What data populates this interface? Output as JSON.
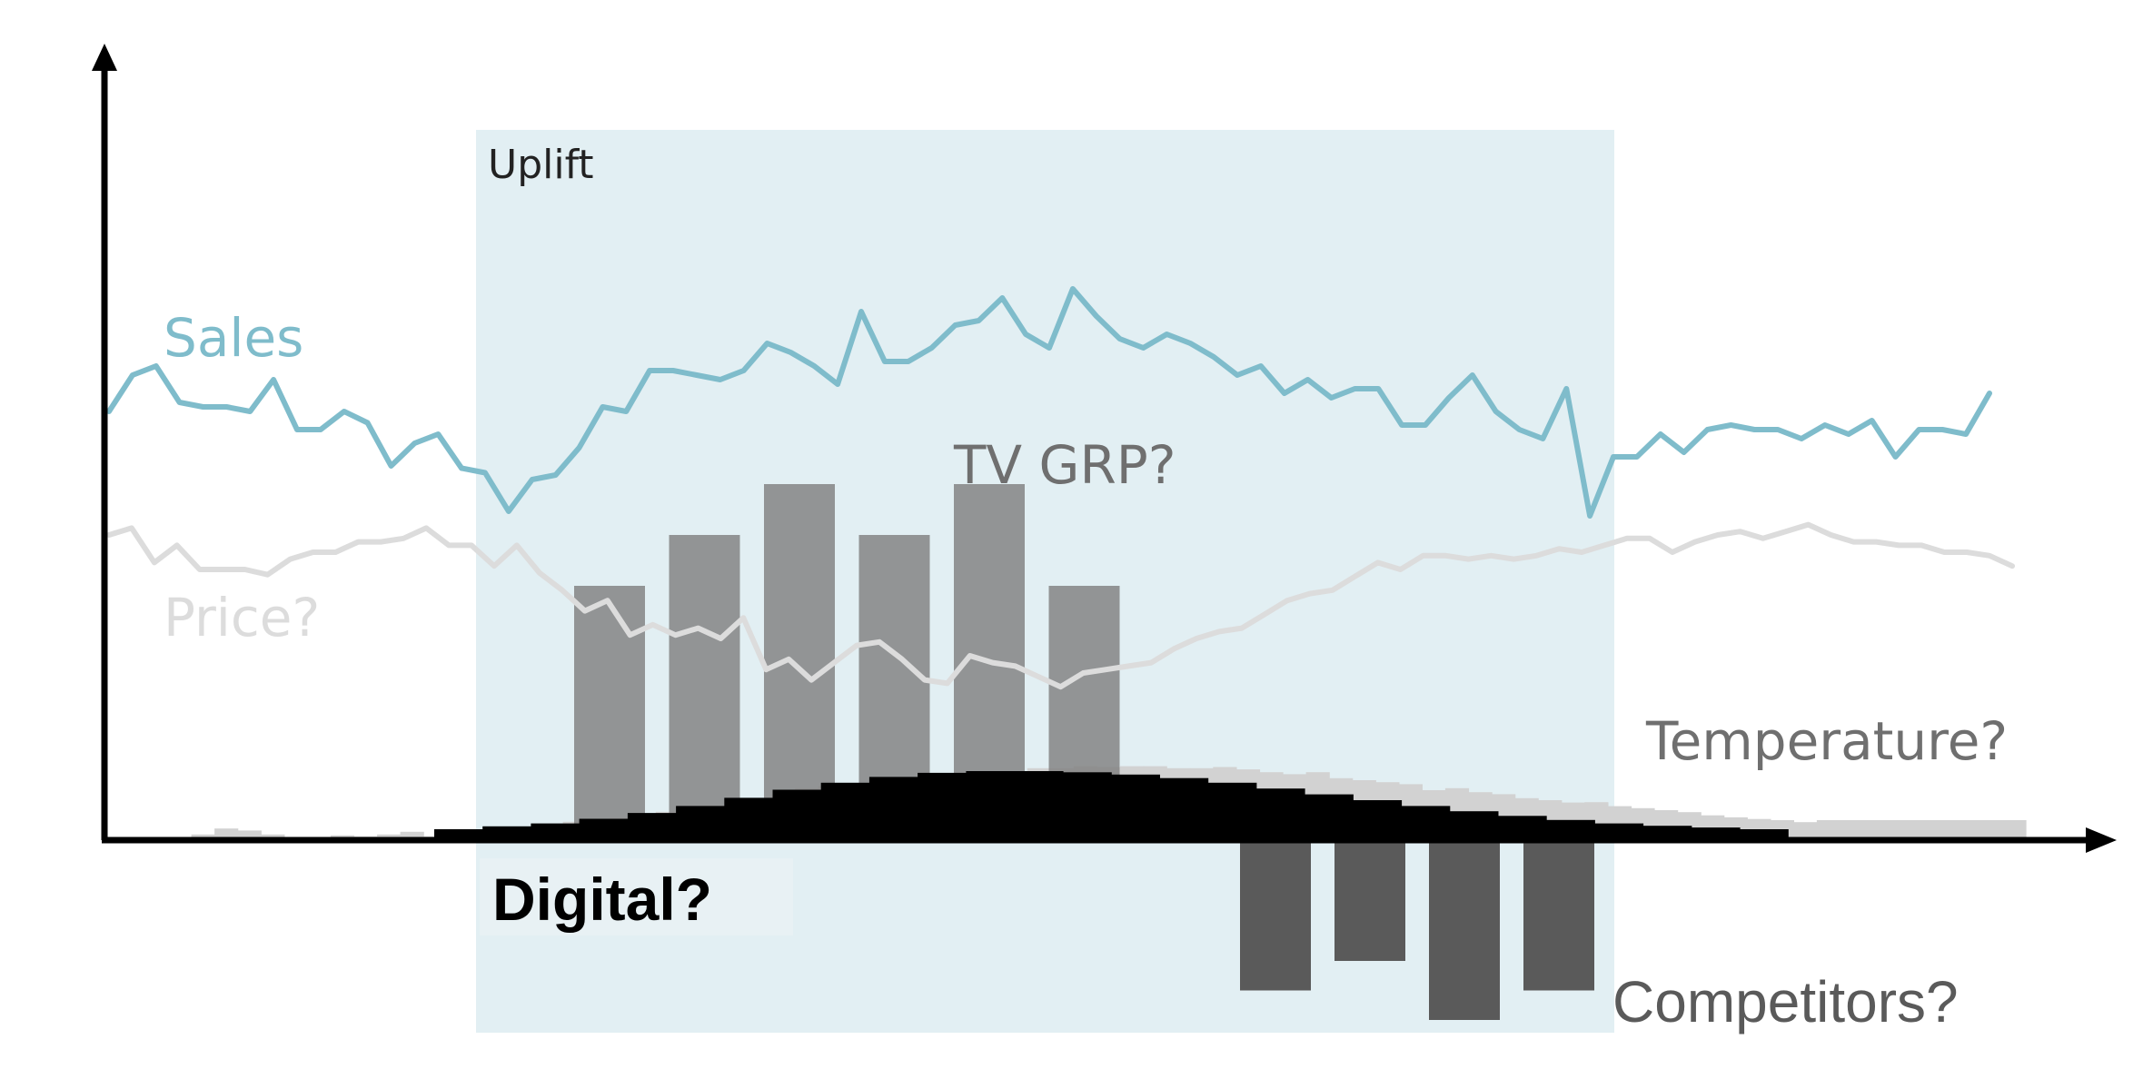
{
  "labels": {
    "uplift": "Uplift",
    "sales": "Sales",
    "price": "Price?",
    "tv_grp": "TV GRP?",
    "temperature": "Temperature?",
    "digital": "Digital?",
    "competitors": "Competitors?"
  },
  "colors": {
    "background": "#ffffff",
    "uplift_region": "#e2eff3",
    "axis": "#000000",
    "sales": "#7fbccb",
    "price": "#dcdcdc",
    "tv_grp": "#808080",
    "temperature": "#d2d2d2",
    "digital": "#000000",
    "competitors": "#5a5a5a",
    "label_dark": "#222222",
    "label_grey": "#6f6f6f"
  },
  "series": {
    "sales": [
      0.46,
      0.62,
      0.66,
      0.5,
      0.48,
      0.48,
      0.46,
      0.6,
      0.38,
      0.38,
      0.46,
      0.41,
      0.22,
      0.32,
      0.36,
      0.21,
      0.19,
      0.02,
      0.16,
      0.18,
      0.3,
      0.48,
      0.46,
      0.64,
      0.64,
      0.62,
      0.6,
      0.64,
      0.76,
      0.72,
      0.66,
      0.58,
      0.9,
      0.68,
      0.68,
      0.74,
      0.84,
      0.86,
      0.96,
      0.8,
      0.74,
      1.0,
      0.88,
      0.78,
      0.74,
      0.8,
      0.76,
      0.7,
      0.62,
      0.66,
      0.54,
      0.6,
      0.52,
      0.56,
      0.56,
      0.4,
      0.4,
      0.52,
      0.62,
      0.46,
      0.38,
      0.34,
      0.56,
      0.0,
      0.26,
      0.26,
      0.36,
      0.28,
      0.38,
      0.4,
      0.38,
      0.38,
      0.34,
      0.4,
      0.36,
      0.42,
      0.26,
      0.38,
      0.38,
      0.36,
      0.54
    ],
    "price": [
      0.9,
      0.94,
      0.74,
      0.84,
      0.7,
      0.7,
      0.7,
      0.67,
      0.76,
      0.8,
      0.8,
      0.86,
      0.86,
      0.88,
      0.94,
      0.84,
      0.84,
      0.72,
      0.84,
      0.68,
      0.58,
      0.46,
      0.52,
      0.32,
      0.38,
      0.32,
      0.36,
      0.3,
      0.42,
      0.12,
      0.18,
      0.06,
      0.16,
      0.26,
      0.28,
      0.18,
      0.06,
      0.04,
      0.2,
      0.16,
      0.14,
      0.08,
      0.02,
      0.1,
      0.12,
      0.14,
      0.16,
      0.24,
      0.3,
      0.34,
      0.36,
      0.44,
      0.52,
      0.56,
      0.58,
      0.66,
      0.74,
      0.7,
      0.78,
      0.78,
      0.76,
      0.78,
      0.76,
      0.78,
      0.82,
      0.8,
      0.84,
      0.88,
      0.88,
      0.8,
      0.86,
      0.9,
      0.92,
      0.88,
      0.92,
      0.96,
      0.9,
      0.86,
      0.86,
      0.84,
      0.84,
      0.8,
      0.8,
      0.78,
      0.72
    ],
    "temperature": [
      0.08,
      0.28,
      0.58,
      0.48,
      0.28,
      0.06,
      0.14,
      0.24,
      0.18,
      0.28,
      0.42,
      0.18,
      0.26,
      0.46,
      0.56,
      0.66,
      0.76,
      0.92,
      0.96,
      1.1,
      1.26,
      1.42,
      1.62,
      1.72,
      1.8,
      2.0,
      2.2,
      2.6,
      2.7,
      2.7,
      2.7,
      3.1,
      3.1,
      3.2,
      3.3,
      3.4,
      3.44,
      3.6,
      3.6,
      3.7,
      3.66,
      3.7,
      3.7,
      3.6,
      3.6,
      3.66,
      3.54,
      3.4,
      3.3,
      3.4,
      3.1,
      3.0,
      2.9,
      2.8,
      2.5,
      2.6,
      2.4,
      2.3,
      2.1,
      2.0,
      1.88,
      1.9,
      1.7,
      1.6,
      1.5,
      1.4,
      1.24,
      1.14,
      1.06,
      1.0,
      0.9,
      1.0,
      1.0,
      1.0,
      1.0,
      1.0,
      1.0,
      1.0,
      1.0,
      1.0
    ],
    "tv_grp": [
      5,
      6,
      7,
      6,
      7,
      5
    ],
    "digital": [
      0.0,
      0.05,
      0.1,
      0.18,
      0.28,
      0.4,
      0.54,
      0.68,
      0.8,
      0.9,
      0.97,
      1.0,
      1.0,
      0.98,
      0.94,
      0.88,
      0.8,
      0.7,
      0.6,
      0.5,
      0.4,
      0.31,
      0.23,
      0.16,
      0.1,
      0.06,
      0.03,
      0.0
    ],
    "competitors": [
      5,
      4,
      6,
      5
    ]
  }
}
